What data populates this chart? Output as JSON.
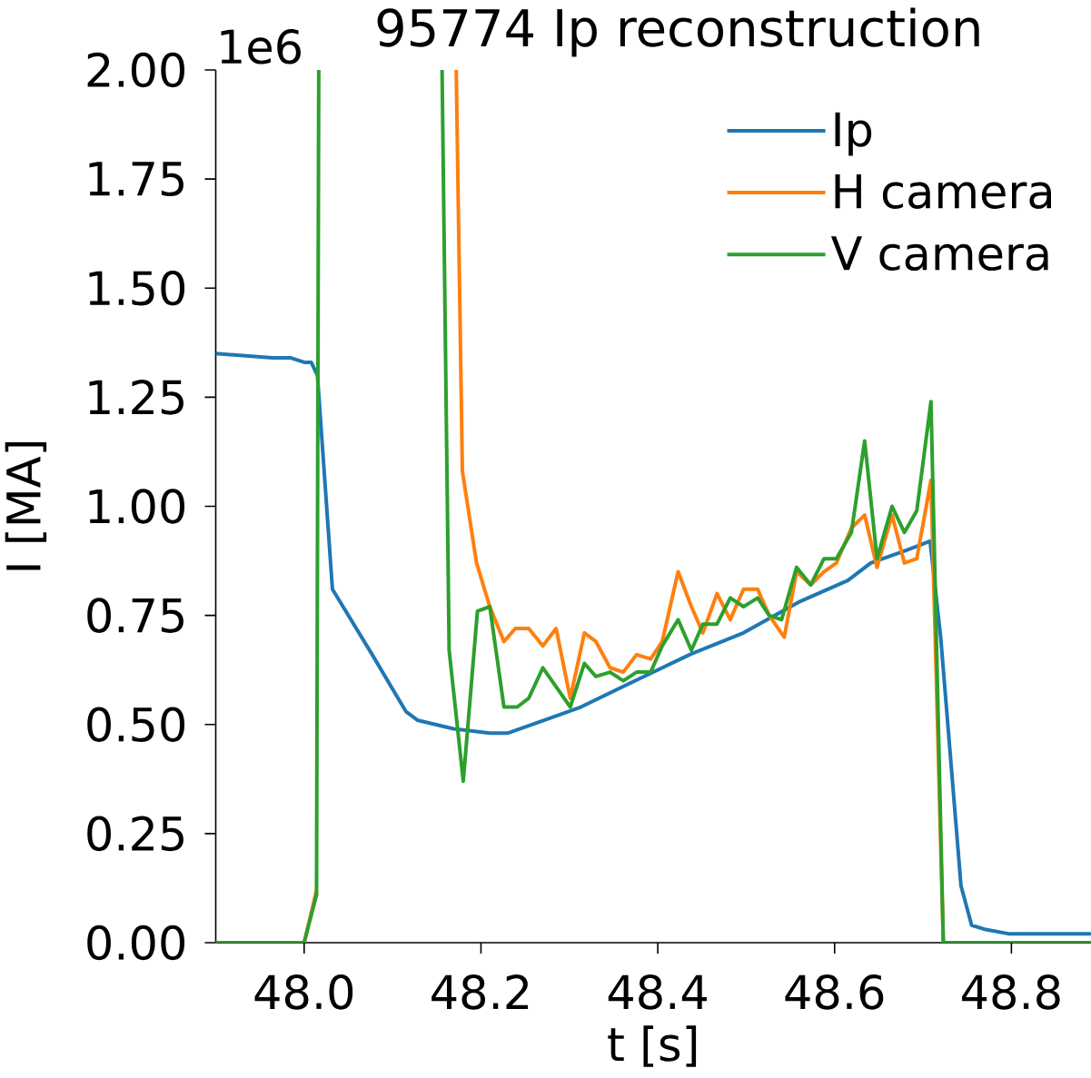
{
  "chart_data": {
    "type": "line",
    "title": "95774 Ip reconstruction",
    "xlabel": "t [s]",
    "ylabel": "I [MA]",
    "annotations": [
      "1e6"
    ],
    "xlim": [
      47.9,
      48.89
    ],
    "ylim": [
      0,
      2
    ],
    "xticks": [
      {
        "value": 48,
        "label": "48.0"
      },
      48.2,
      48.4,
      48.6,
      48.8
    ],
    "yticks": [
      {
        "value": 0,
        "label": "0.00"
      },
      {
        "value": 0.25,
        "label": "0.25"
      },
      {
        "value": 0.5,
        "label": "0.50"
      },
      {
        "value": 0.75,
        "label": "0.75"
      },
      {
        "value": 1,
        "label": "1.00"
      },
      {
        "value": 1.25,
        "label": "1.25"
      },
      {
        "value": 1.5,
        "label": "1.50"
      },
      {
        "value": 1.75,
        "label": "1.75"
      },
      {
        "value": 2,
        "label": "2.00"
      }
    ],
    "legend": "top right",
    "series": [
      {
        "name": "Ip",
        "color": "#1f77b4",
        "x": [
          47.9,
          47.964,
          47.985,
          48.0,
          48.008,
          48.015,
          48.032,
          48.044,
          48.077,
          48.115,
          48.128,
          48.169,
          48.21,
          48.23,
          48.272,
          48.313,
          48.374,
          48.436,
          48.497,
          48.559,
          48.615,
          48.641,
          48.682,
          48.708,
          48.72,
          48.743,
          48.755,
          48.771,
          48.798,
          48.845,
          48.89
        ],
        "values": [
          1.35,
          1.34,
          1.34,
          1.33,
          1.33,
          1.3,
          0.81,
          0.77,
          0.66,
          0.53,
          0.51,
          0.49,
          0.48,
          0.48,
          0.51,
          0.54,
          0.6,
          0.66,
          0.71,
          0.78,
          0.83,
          0.87,
          0.9,
          0.92,
          0.7,
          0.13,
          0.04,
          0.03,
          0.02,
          0.02,
          0.02
        ]
      },
      {
        "name": "H camera",
        "color": "#ff7f0e",
        "x": [
          47.9,
          48.0,
          48.014,
          48.0165,
          48.1,
          48.172,
          48.179,
          48.195,
          48.21,
          48.226,
          48.239,
          48.254,
          48.27,
          48.285,
          48.301,
          48.317,
          48.33,
          48.346,
          48.361,
          48.376,
          48.392,
          48.405,
          48.423,
          48.438,
          48.451,
          48.467,
          48.482,
          48.497,
          48.513,
          48.526,
          48.543,
          48.557,
          48.573,
          48.588,
          48.602,
          48.619,
          48.634,
          48.648,
          48.665,
          48.679,
          48.693,
          48.709,
          48.723,
          48.89
        ],
        "values": [
          0,
          0,
          0.12,
          null,
          null,
          2.0,
          1.08,
          0.87,
          0.77,
          0.69,
          0.72,
          0.72,
          0.68,
          0.72,
          0.56,
          0.71,
          0.69,
          0.63,
          0.62,
          0.66,
          0.65,
          0.69,
          0.85,
          0.77,
          0.71,
          0.8,
          0.74,
          0.81,
          0.81,
          0.75,
          0.7,
          0.85,
          0.82,
          0.85,
          0.87,
          0.95,
          0.98,
          0.86,
          0.98,
          0.87,
          0.88,
          1.06,
          0,
          0
        ]
      },
      {
        "name": "V camera",
        "color": "#2ca02c",
        "x": [
          47.9,
          48.0,
          48.014,
          48.0165,
          48.1,
          48.156,
          48.164,
          48.18,
          48.196,
          48.21,
          48.226,
          48.241,
          48.254,
          48.27,
          48.301,
          48.317,
          48.33,
          48.346,
          48.361,
          48.376,
          48.392,
          48.405,
          48.423,
          48.438,
          48.451,
          48.467,
          48.482,
          48.497,
          48.513,
          48.526,
          48.54,
          48.557,
          48.573,
          48.588,
          48.602,
          48.619,
          48.634,
          48.648,
          48.665,
          48.679,
          48.693,
          48.709,
          48.723,
          48.89
        ],
        "values": [
          0,
          0,
          0.11,
          2.0,
          null,
          2.0,
          0.67,
          0.37,
          0.76,
          0.77,
          0.54,
          0.54,
          0.56,
          0.63,
          0.54,
          0.64,
          0.61,
          0.62,
          0.6,
          0.62,
          0.62,
          0.68,
          0.74,
          0.67,
          0.73,
          0.73,
          0.79,
          0.77,
          0.79,
          0.75,
          0.74,
          0.86,
          0.82,
          0.88,
          0.88,
          0.94,
          1.15,
          0.88,
          1.0,
          0.94,
          0.99,
          1.24,
          0,
          0
        ]
      }
    ]
  }
}
